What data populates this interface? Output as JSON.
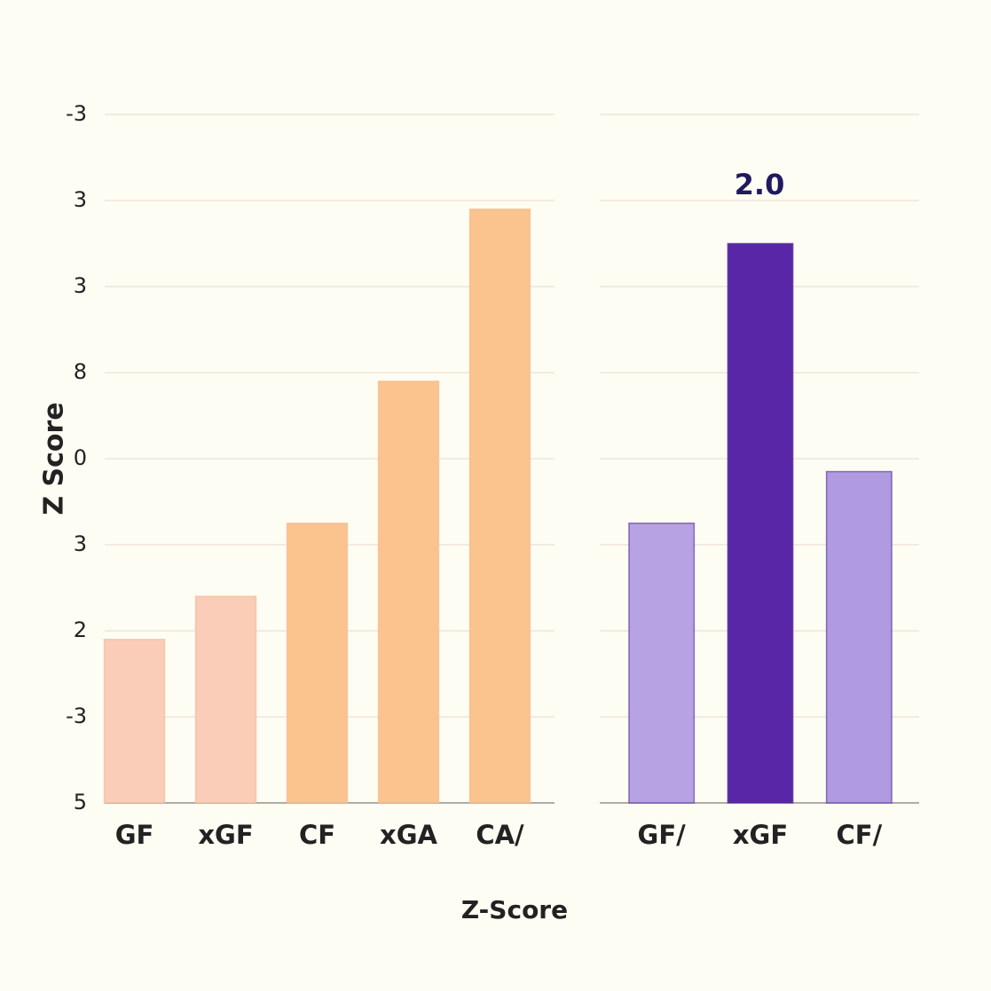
{
  "chart_data": [
    {
      "type": "bar",
      "ylabel": "Z Score",
      "xlabel": "Z-Score",
      "categories": [
        "GF",
        "xGF",
        "CF",
        "xGA",
        "CA/"
      ],
      "values": [
        -2.1,
        -1.6,
        -0.75,
        0.9,
        2.9
      ],
      "colors": [
        "#f9cdb8",
        "#f9cdb8",
        "#fbc48e",
        "#fbc48e",
        "#fbc48e"
      ],
      "ylim": [
        -4,
        4
      ],
      "yticks": [
        {
          "value": 4,
          "label": "-3"
        },
        3,
        {
          "value": 2,
          "label": "3"
        },
        {
          "value": 1,
          "label": "8"
        },
        0,
        {
          "value": -1,
          "label": "3"
        },
        {
          "value": -2,
          "label": "2"
        },
        -3,
        {
          "value": -4,
          "label": "5"
        }
      ],
      "grid": true
    },
    {
      "type": "bar",
      "annotation": "2.0",
      "categories": [
        "GF/",
        "xGF",
        "CF/"
      ],
      "values": [
        -0.75,
        2.5,
        -0.15
      ],
      "colors": [
        "#b7a2e3",
        "#5a26a8",
        "#b09be0"
      ],
      "ylim": [
        -4,
        4
      ],
      "grid": true
    }
  ]
}
